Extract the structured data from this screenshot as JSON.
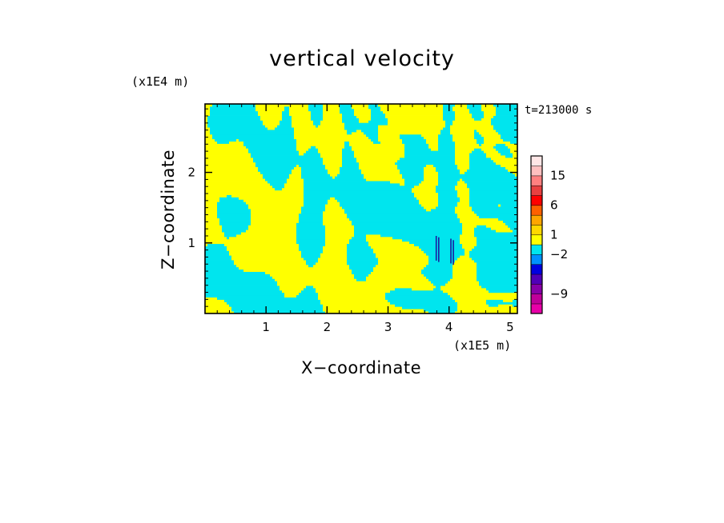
{
  "chart_data": {
    "type": "heatmap",
    "title": "vertical velocity",
    "xlabel": "X−coordinate",
    "ylabel": "Z−coordinate",
    "x_scale_label": "(x1E5 m)",
    "z_scale_label": "(x1E4 m)",
    "time_label": "t=213000 s",
    "xlim": [
      0,
      5.12
    ],
    "zlim": [
      0,
      2.97
    ],
    "x_ticks": [
      "1",
      "2",
      "3",
      "4",
      "5"
    ],
    "x_tick_values": [
      1,
      2,
      3,
      4,
      5
    ],
    "z_ticks": [
      "1",
      "2"
    ],
    "z_tick_values": [
      1,
      2
    ],
    "field_colors": {
      "positive": "#ffff00",
      "negative": "#00e5ee",
      "strong_negative": "#1a1aa0"
    },
    "colorbar": {
      "colors": [
        "#e800a8",
        "#c0009a",
        "#8800a8",
        "#5000b8",
        "#0000e0",
        "#0090ff",
        "#00e5ee",
        "#ffff00",
        "#ffd700",
        "#ffa500",
        "#ff6000",
        "#ff0000",
        "#e84040",
        "#ff8080",
        "#ffbfbf",
        "#ffe6e6"
      ],
      "tick_labels": [
        "−9",
        "−2",
        "1",
        "6",
        "15"
      ],
      "tick_bounds": [
        2,
        6,
        8,
        11,
        14
      ]
    }
  }
}
